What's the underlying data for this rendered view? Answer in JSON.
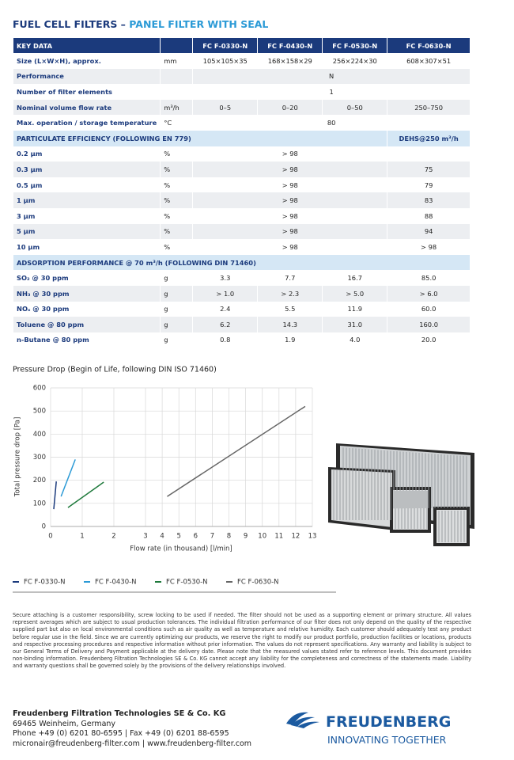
{
  "header": {
    "title": "FUEL CELL FILTERS",
    "subtitle": "PANEL FILTER WITH SEAL"
  },
  "table": {
    "key_heading": "KEY DATA",
    "columns": [
      "FC F-0330-N",
      "FC F-0430-N",
      "FC F-0530-N",
      "FC F-0630-N"
    ],
    "general": [
      {
        "label": "Size (L×W×H), approx.",
        "unit": "mm",
        "values": [
          "105×105×35",
          "168×158×29",
          "256×224×30",
          "608×307×51"
        ]
      },
      {
        "label": "Performance",
        "values": [
          "N"
        ]
      },
      {
        "label": "Number of filter elements",
        "values": [
          "1"
        ]
      },
      {
        "label": "Nominal volume flow rate",
        "unit": "m³/h",
        "values": [
          "0–5",
          "0–20",
          "0–50",
          "250–750"
        ]
      },
      {
        "label": "Max. operation / storage temperature",
        "unit": "°C",
        "values": [
          "80"
        ]
      }
    ],
    "particulate": {
      "heading": "PARTICULATE EFFICIENCY (FOLLOWING EN 779)",
      "dehs_heading": "DEHS@250 m³/h",
      "rows": [
        {
          "label": "0.2 µm",
          "unit": "%",
          "values": [
            "> 98"
          ]
        },
        {
          "label": "0.3 µm",
          "unit": "%",
          "values": [
            "> 98"
          ],
          "dehs": "75"
        },
        {
          "label": "0.5 µm",
          "unit": "%",
          "values": [
            "> 98"
          ],
          "dehs": "79"
        },
        {
          "label": "1 µm",
          "unit": "%",
          "values": [
            "> 98"
          ],
          "dehs": "83"
        },
        {
          "label": "3 µm",
          "unit": "%",
          "values": [
            "> 98"
          ],
          "dehs": "88"
        },
        {
          "label": "5 µm",
          "unit": "%",
          "values": [
            "> 98"
          ],
          "dehs": "94"
        },
        {
          "label": "10 µm",
          "unit": "%",
          "values": [
            "> 98"
          ],
          "dehs": "> 98"
        }
      ]
    },
    "adsorption": {
      "heading": "ADSORPTION PERFORMANCE @ 70 m³/h (FOLLOWING DIN 71460)",
      "rows": [
        {
          "label": "SO₂ @ 30 ppm",
          "unit": "g",
          "values": [
            "3.3",
            "7.7",
            "16.7",
            "85.0"
          ]
        },
        {
          "label": "NH₃ @ 30 ppm",
          "unit": "g",
          "values": [
            "> 1.0",
            "> 2.3",
            "> 5.0",
            "> 6.0"
          ]
        },
        {
          "label": "NOₓ @ 30 ppm",
          "unit": "g",
          "values": [
            "2.4",
            "5.5",
            "11.9",
            "60.0"
          ]
        },
        {
          "label": "Toluene @ 80 ppm",
          "unit": "g",
          "values": [
            "6.2",
            "14.3",
            "31.0",
            "160.0"
          ]
        },
        {
          "label": "n-Butane @ 80 ppm",
          "unit": "g",
          "values": [
            "0.8",
            "1.9",
            "4.0",
            "20.0"
          ]
        }
      ]
    }
  },
  "chart_data": {
    "type": "line",
    "title": "Pressure Drop (Begin of Life, following DIN ISO 71460)",
    "x_label": "Flow rate (in thousand) [l/min]",
    "y_label": "Total pressure drop [Pa]",
    "xlim": [
      0,
      13
    ],
    "ylim": [
      0,
      600
    ],
    "xticks": [
      0,
      1,
      2,
      3,
      4,
      5,
      6,
      7,
      8,
      9,
      10,
      11,
      12,
      13
    ],
    "yticks": [
      0,
      100,
      200,
      300,
      400,
      500,
      600
    ],
    "grid": true,
    "series": [
      {
        "name": "FC F-0330-N",
        "color": "#1b3a7c",
        "x": [
          0.1,
          0.18
        ],
        "values": [
          75,
          195
        ]
      },
      {
        "name": "FC F-0430-N",
        "color": "#2b9ad6",
        "x": [
          0.33,
          0.78
        ],
        "values": [
          130,
          290
        ]
      },
      {
        "name": "FC F-0530-N",
        "color": "#1f7a3c",
        "x": [
          0.55,
          1.68
        ],
        "values": [
          82,
          192
        ]
      },
      {
        "name": "FC F-0630-N",
        "color": "#666666",
        "x": [
          4.3,
          12.57
        ],
        "values": [
          130,
          520
        ]
      }
    ]
  },
  "disclaimer": "Secure attaching is a customer responsibility, screw locking to be used if needed. The filter should not be used as a supporting element or primary structure. All values represent averages which are subject to usual production tolerances. The individual filtration performance of our filter does not only depend on the quality of the respective supplied part but also on local environmental conditions such as air quality as well as temperature and relative humidity. Each customer should adequately test any product before regular use in the field. Since we are currently optimizing our products, we reserve the right to modify our product portfolio, production facilities or locations, products and respective processing procedures and respective information without prior information. The values do not represent specifications. Any warranty and liability is subject to our General Terms of Delivery and Payment applicable at the delivery date. Please note that the measured values stated refer to reference levels. This document provides non-binding information. Freudenberg Filtration Technologies SE & Co. KG cannot accept any liability for the completeness and correctness of the statements made. Liability and warranty questions shall be governed solely by the provisions of the delivery relationships involved.",
  "footer": {
    "company": "Freudenberg Filtration Technologies SE & Co. KG",
    "address": "69465 Weinheim, Germany",
    "phone": "Phone +49 (0) 6201 80-6595 | Fax +49 (0) 6201 88-6595",
    "contact": "micronair@freudenberg-filter.com | www.freudenberg-filter.com",
    "brand": "FREUDENBERG",
    "slogan": "INNOVATING TOGETHER"
  }
}
